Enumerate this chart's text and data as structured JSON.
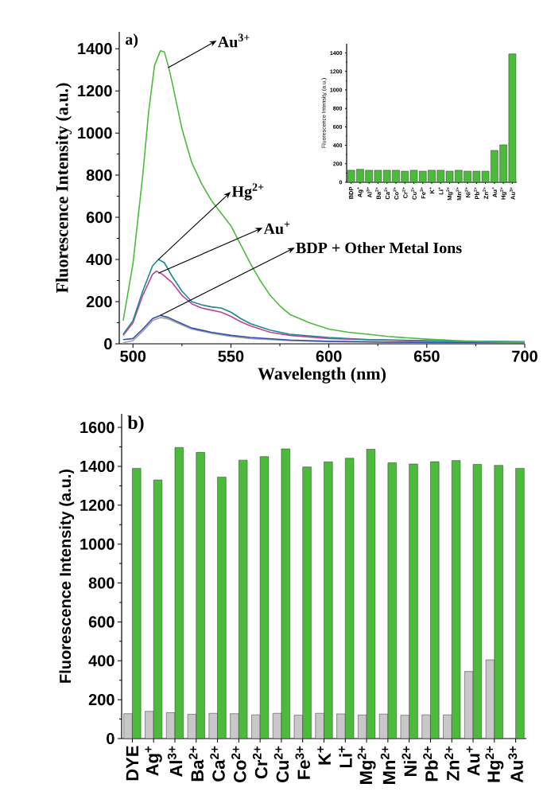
{
  "chart_data": [
    {
      "type": "line",
      "xlabel": "Wavelength (nm)",
      "ylabel": "Fluorescence Intensity (a.u.)",
      "xlim": [
        493,
        700
      ],
      "ylim": [
        0,
        1480
      ],
      "xticks": [
        500,
        550,
        600,
        650,
        700
      ],
      "yticks": [
        0,
        200,
        400,
        600,
        800,
        1000,
        1200,
        1400
      ],
      "series": [
        {
          "color": "#4cbb3c",
          "x": [
            495,
            500,
            505,
            508,
            511,
            514,
            516,
            518,
            520,
            525,
            530,
            535,
            540,
            545,
            550,
            555,
            560,
            565,
            570,
            575,
            580,
            590,
            600,
            610,
            620,
            630,
            640,
            650,
            660,
            670,
            680,
            690,
            700
          ],
          "values": [
            110,
            380,
            800,
            1100,
            1320,
            1390,
            1385,
            1320,
            1240,
            1020,
            860,
            760,
            680,
            620,
            560,
            470,
            380,
            300,
            230,
            180,
            140,
            100,
            70,
            55,
            45,
            35,
            28,
            22,
            18,
            12,
            10,
            8,
            8
          ]
        },
        {
          "color": "#1a8a8a",
          "x": [
            495,
            500,
            505,
            510,
            513,
            516,
            520,
            525,
            530,
            535,
            540,
            545,
            550,
            555,
            560,
            570,
            580,
            600,
            620,
            650,
            700
          ],
          "values": [
            45,
            110,
            250,
            370,
            400,
            385,
            320,
            250,
            200,
            185,
            175,
            170,
            150,
            120,
            95,
            65,
            45,
            30,
            20,
            15,
            10
          ]
        },
        {
          "color": "#c040a0",
          "x": [
            495,
            500,
            505,
            510,
            512,
            515,
            520,
            525,
            530,
            535,
            540,
            545,
            550,
            555,
            560,
            570,
            580,
            600,
            650,
            700
          ],
          "values": [
            40,
            100,
            230,
            330,
            345,
            330,
            290,
            230,
            190,
            170,
            160,
            150,
            130,
            105,
            85,
            55,
            40,
            25,
            12,
            8
          ]
        },
        {
          "color": "#3050b0",
          "x": [
            495,
            500,
            505,
            510,
            514,
            518,
            525,
            530,
            540,
            550,
            560,
            580,
            600,
            650,
            700
          ],
          "values": [
            20,
            25,
            70,
            120,
            135,
            125,
            95,
            75,
            55,
            40,
            30,
            18,
            12,
            6,
            4
          ]
        },
        {
          "color": "#a0a0a0",
          "x": [
            495,
            500,
            505,
            510,
            514,
            518,
            525,
            530,
            540,
            550,
            560,
            580,
            600,
            650,
            700
          ],
          "values": [
            5,
            15,
            60,
            110,
            125,
            118,
            90,
            70,
            50,
            35,
            25,
            15,
            10,
            5,
            3
          ]
        }
      ],
      "annotations": [
        "a)",
        {
          "text": "Au$^{3+}$",
          "x": 518,
          "y": 1310
        },
        {
          "text": "Hg$^{2+}$",
          "x": 513,
          "y": 400
        },
        {
          "text": "Au$^{+}$",
          "x": 513,
          "y": 335
        },
        {
          "text": "BDP + Other Metal Ions",
          "x": 514,
          "y": 135
        }
      ]
    },
    {
      "type": "bar",
      "ylabel": "Fluorescence Intensity (a.u.)",
      "categories": [
        "BDP",
        "Ag$^{+}$",
        "Al$^{3+}$",
        "Ba$^{2+}$",
        "Ca$^{2+}$",
        "Co$^{2+}$",
        "Cr$^{2+}$",
        "Cu$^{2+}$",
        "Fe$^{3+}$",
        "K$^{+}$",
        "Li$^{+}$",
        "Mg$^{2+}$",
        "Mn$^{2+}$",
        "Ni$^{2+}$",
        "Pb$^{2+}$",
        "Zn$^{2+}$",
        "Au$^{+}$",
        "Hg$^{2+}$",
        "Au$^{3+}$"
      ],
      "values": [
        130,
        140,
        130,
        130,
        130,
        130,
        120,
        130,
        120,
        130,
        130,
        120,
        130,
        120,
        120,
        120,
        345,
        405,
        1390
      ],
      "color": "#4cbb3c",
      "ylim": [
        0,
        1500
      ],
      "yticks": [
        0,
        200,
        400,
        600,
        800,
        1000,
        1200,
        1400
      ]
    },
    {
      "type": "bar",
      "ylabel": "Fluorescence Intensity (a.u.)",
      "categories": [
        "DYE",
        "Ag$^{+}$",
        "Al$^{3+}$",
        "Ba$^{2+}$",
        "Ca$^{2+}$",
        "Co$^{2+}$",
        "Cr$^{2+}$",
        "Cu$^{2+}$",
        "Fe$^{3+}$",
        "K$^{+}$",
        "Li$^{+}$",
        "Mg$^{2+}$",
        "Mn$^{2+}$",
        "Ni$^{2+}$",
        "Pb$^{2+}$",
        "Zn$^{2+}$",
        "Au$^{+}$",
        "Hg$^{2+}$",
        "Au$^{3+}$"
      ],
      "series": [
        {
          "color": "#c8c8c8",
          "values": [
            128,
            140,
            133,
            125,
            130,
            128,
            122,
            130,
            120,
            130,
            127,
            121,
            126,
            120,
            122,
            122,
            345,
            405,
            null
          ]
        },
        {
          "color": "#4cbb3c",
          "values": [
            1390,
            1330,
            1497,
            1472,
            1345,
            1432,
            1450,
            1490,
            1397,
            1423,
            1442,
            1488,
            1418,
            1412,
            1424,
            1430,
            1410,
            1405,
            1390
          ]
        }
      ],
      "ylim": [
        0,
        1670
      ],
      "yticks": [
        0,
        200,
        400,
        600,
        800,
        1000,
        1200,
        1400,
        1600
      ],
      "annotations": [
        "b)"
      ]
    }
  ]
}
